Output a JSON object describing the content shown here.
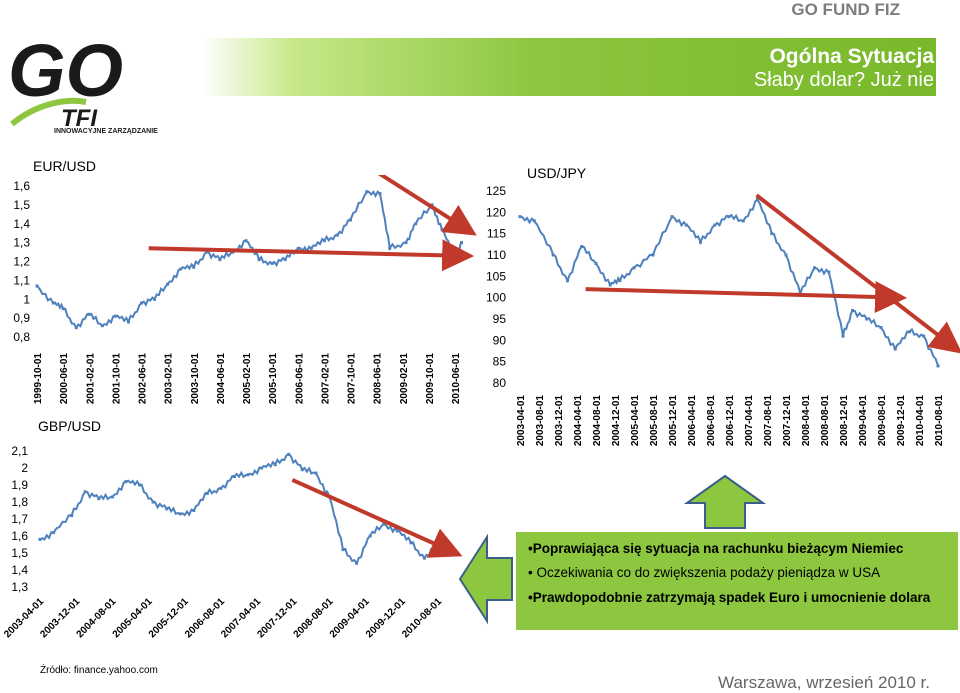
{
  "header": {
    "fund_name": "GO FUND FIZ",
    "title": "Ogólna Sytuacja",
    "subtitle": "Słaby dolar? Już nie"
  },
  "logo": {
    "text": "GO",
    "brand": "TFI",
    "tagline": "INNOWACYJNE ZARZĄDZANIE",
    "colors": {
      "dark": "#1a1a1a",
      "accent": "#8dc63f"
    }
  },
  "info_box": {
    "points": [
      "•Poprawiająca się sytuacja na rachunku bieżącym Niemiec",
      "• Oczekiwania co do zwiększenia podaży pieniądza w USA",
      "•Prawdopodobnie zatrzymają spadek Euro i umocnienie dolara"
    ]
  },
  "source": "Źródło: finance.yahoo.com",
  "footer": "Warszawa, wrzesień 2010 r.",
  "colors": {
    "accent": "#8dc63f",
    "series": "#4f81bd",
    "trend_arrow": "#c0392b",
    "arrow_fill": "#8dc63f",
    "arrow_stroke": "#3b5e8a"
  },
  "chart_data": [
    {
      "type": "line",
      "title": "EUR/USD",
      "ylim": [
        0.8,
        1.6
      ],
      "yticks": [
        "1,6",
        "1,5",
        "1,4",
        "1,3",
        "1,2",
        "1,1",
        "1",
        "0,9",
        "0,8"
      ],
      "xticks": [
        "1999-10-01",
        "2000-06-01",
        "2001-02-01",
        "2001-10-01",
        "2002-06-01",
        "2003-02-01",
        "2003-10-01",
        "2004-06-01",
        "2005-02-01",
        "2005-10-01",
        "2006-06-01",
        "2007-02-01",
        "2007-10-01",
        "2008-06-01",
        "2009-02-01",
        "2009-10-01",
        "2010-06-01"
      ],
      "x": [
        "1999-10",
        "2000-03",
        "2000-06",
        "2000-10",
        "2001-02",
        "2001-06",
        "2001-10",
        "2002-02",
        "2002-06",
        "2002-10",
        "2003-02",
        "2003-06",
        "2003-10",
        "2004-02",
        "2004-06",
        "2004-10",
        "2005-02",
        "2005-06",
        "2005-10",
        "2006-02",
        "2006-06",
        "2006-10",
        "2007-02",
        "2007-06",
        "2007-10",
        "2008-03",
        "2008-07",
        "2008-10",
        "2009-03",
        "2009-06",
        "2009-11",
        "2010-02",
        "2010-06",
        "2010-08"
      ],
      "values": [
        1.07,
        0.98,
        0.95,
        0.85,
        0.92,
        0.86,
        0.91,
        0.88,
        0.98,
        1.0,
        1.08,
        1.16,
        1.17,
        1.25,
        1.21,
        1.25,
        1.31,
        1.21,
        1.19,
        1.21,
        1.27,
        1.27,
        1.31,
        1.34,
        1.42,
        1.57,
        1.56,
        1.27,
        1.3,
        1.4,
        1.5,
        1.37,
        1.22,
        1.3
      ],
      "trend_arrows": [
        {
          "from": [
            2002.6,
            1.27
          ],
          "to": [
            2010.7,
            1.23
          ]
        },
        {
          "from": [
            2008.0,
            1.73
          ],
          "to": [
            2010.8,
            1.36
          ]
        }
      ]
    },
    {
      "type": "line",
      "title": "USD/JPY",
      "ylim": [
        80,
        125
      ],
      "yticks": [
        "125",
        "120",
        "115",
        "110",
        "105",
        "100",
        "95",
        "90",
        "85",
        "80"
      ],
      "xticks": [
        "2003-04-01",
        "2003-08-01",
        "2003-12-01",
        "2004-04-01",
        "2004-08-01",
        "2004-12-01",
        "2005-04-01",
        "2005-08-01",
        "2005-12-01",
        "2006-04-01",
        "2006-08-01",
        "2006-12-01",
        "2007-04-01",
        "2007-08-01",
        "2007-12-01",
        "2008-04-01",
        "2008-08-01",
        "2008-12-01",
        "2009-04-01",
        "2009-08-01",
        "2009-12-01",
        "2010-04-01",
        "2010-08-01"
      ],
      "x": [
        "2003-04",
        "2003-07",
        "2003-11",
        "2004-02",
        "2004-05",
        "2004-08",
        "2004-11",
        "2005-01",
        "2005-04",
        "2005-08",
        "2005-12",
        "2006-03",
        "2006-06",
        "2006-09",
        "2006-12",
        "2007-03",
        "2007-06",
        "2007-09",
        "2007-12",
        "2008-03",
        "2008-06",
        "2008-09",
        "2008-12",
        "2009-02",
        "2009-05",
        "2009-08",
        "2009-11",
        "2010-02",
        "2010-05",
        "2010-08"
      ],
      "values": [
        119,
        118,
        110,
        104,
        112,
        108,
        103,
        104,
        107,
        110,
        119,
        117,
        113,
        117,
        119,
        118,
        123,
        115,
        110,
        101,
        107,
        106,
        91,
        97,
        95,
        93,
        88,
        92,
        91,
        84
      ],
      "trend_arrows": [
        {
          "from": [
            2004.4,
            102.0
          ],
          "to": [
            2009.9,
            100.0
          ]
        },
        {
          "from": [
            2007.4,
            124.0
          ],
          "to": [
            2010.9,
            88.0
          ]
        }
      ]
    },
    {
      "type": "line",
      "title": "GBP/USD",
      "ylim": [
        1.3,
        2.1
      ],
      "yticks": [
        "2,1",
        "2",
        "1,9",
        "1,8",
        "1,7",
        "1,6",
        "1,5",
        "1,4",
        "1,3"
      ],
      "xticks": [
        "2003-04-01",
        "2003-12-01",
        "2004-08-01",
        "2005-04-01",
        "2005-12-01",
        "2006-08-01",
        "2007-04-01",
        "2007-12-01",
        "2008-08-01",
        "2009-04-01",
        "2009-12-01",
        "2010-08-01"
      ],
      "x": [
        "2003-04",
        "2003-07",
        "2003-11",
        "2004-02",
        "2004-05",
        "2004-08",
        "2004-11",
        "2005-02",
        "2005-05",
        "2005-08",
        "2005-11",
        "2006-02",
        "2006-05",
        "2006-08",
        "2006-11",
        "2007-02",
        "2007-05",
        "2007-08",
        "2007-11",
        "2008-02",
        "2008-05",
        "2008-08",
        "2008-11",
        "2009-02",
        "2009-05",
        "2009-08",
        "2009-11",
        "2010-02",
        "2010-05",
        "2010-08"
      ],
      "values": [
        1.58,
        1.62,
        1.72,
        1.86,
        1.82,
        1.83,
        1.92,
        1.9,
        1.8,
        1.76,
        1.73,
        1.75,
        1.85,
        1.88,
        1.95,
        1.96,
        2.0,
        2.02,
        2.08,
        1.99,
        1.97,
        1.83,
        1.52,
        1.44,
        1.6,
        1.67,
        1.63,
        1.56,
        1.47,
        1.56
      ],
      "trend_arrows": [
        {
          "from": [
            2007.9,
            1.93
          ],
          "to": [
            2010.9,
            1.5
          ]
        }
      ]
    }
  ]
}
